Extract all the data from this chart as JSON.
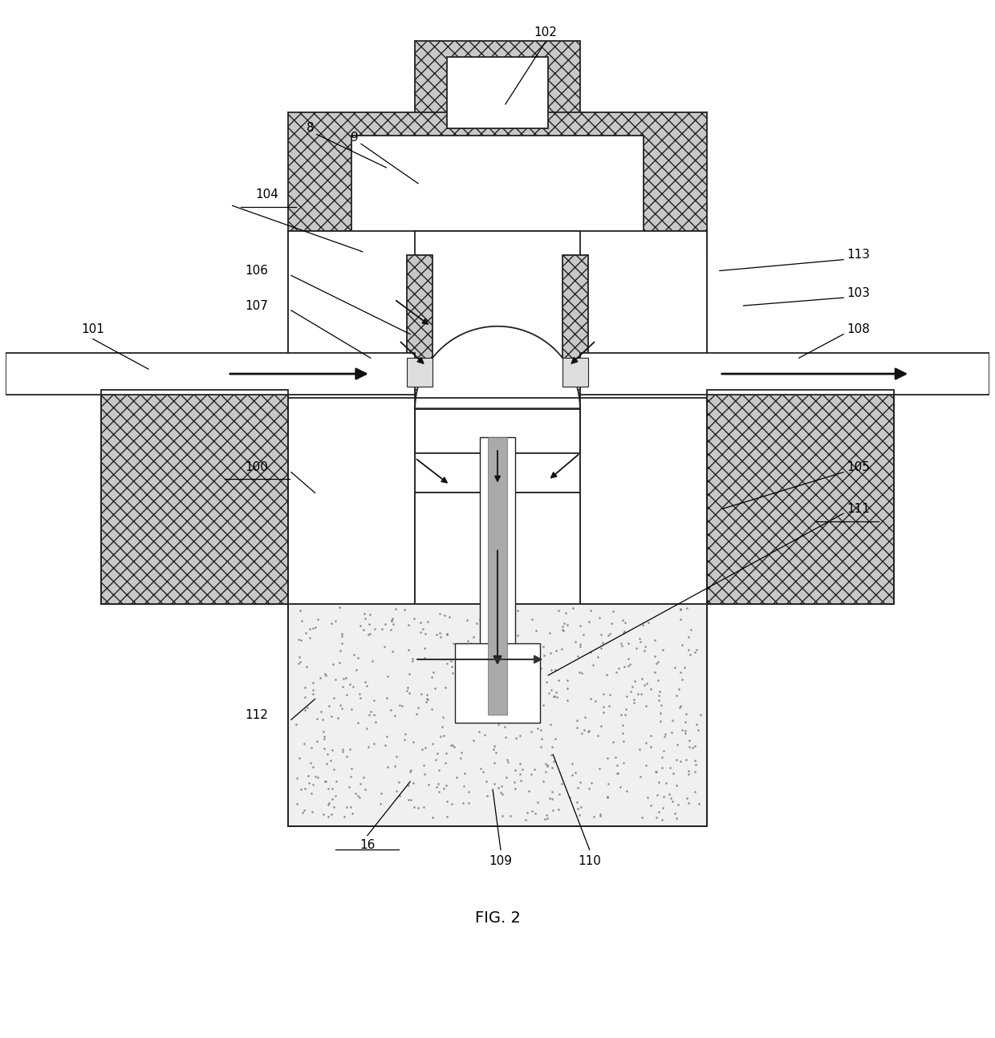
{
  "title": "FIG. 2",
  "background_color": "#ffffff",
  "hatch_fc": "#c8c8c8",
  "hatch_pattern": "xx",
  "line_color": "#222222",
  "fig_label_fontsize": 14,
  "label_fontsize": 11
}
